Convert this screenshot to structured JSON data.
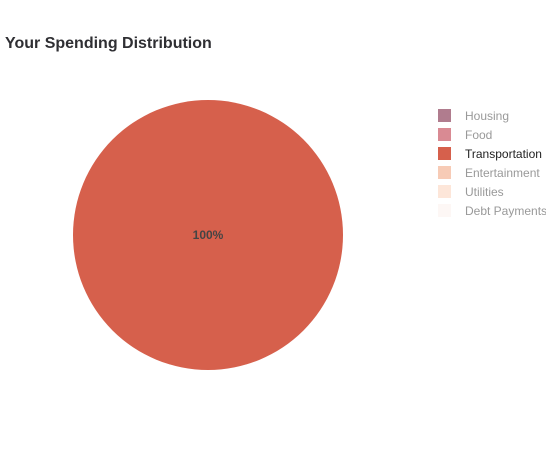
{
  "chart_data": {
    "type": "pie",
    "title": "Your Spending Distribution",
    "categories": [
      "Housing",
      "Food",
      "Transportation",
      "Entertainment",
      "Utilities",
      "Debt Payments"
    ],
    "values": [
      0,
      0,
      100,
      0,
      0,
      0
    ],
    "colors": [
      "#b07c8e",
      "#d98a93",
      "#d6604c",
      "#f7cbb6",
      "#fde6d9",
      "#fdf7f5"
    ],
    "active": [
      false,
      false,
      true,
      false,
      false,
      false
    ],
    "data_labels": [
      "",
      "",
      "100%",
      "",
      "",
      ""
    ],
    "legend_position": "right"
  }
}
